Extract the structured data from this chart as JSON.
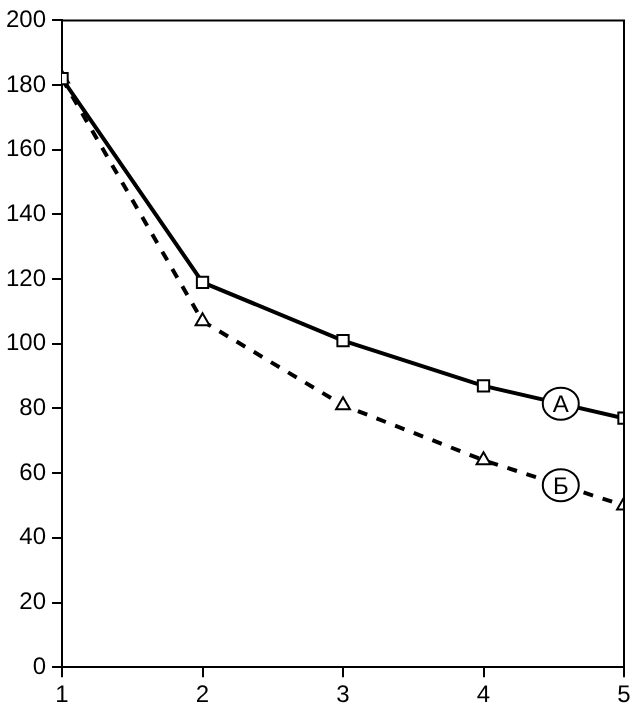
{
  "chart_data": {
    "type": "line",
    "x": [
      1,
      2,
      3,
      4,
      5
    ],
    "xlim": [
      1,
      5
    ],
    "xticks": [
      1,
      2,
      3,
      4,
      5
    ],
    "ylim": [
      0,
      200
    ],
    "yticks": [
      0,
      20,
      40,
      60,
      80,
      100,
      120,
      140,
      160,
      180,
      200
    ],
    "grid": false,
    "legend": false,
    "series": [
      {
        "name": "A",
        "color": "#000000",
        "values": [
          182,
          119,
          101,
          87,
          77
        ],
        "marker": "square",
        "line_style": "solid"
      },
      {
        "name": "Б",
        "color": "#000000",
        "values": [
          182,
          107,
          81,
          64,
          50
        ],
        "marker": "triangle",
        "line_style": "dashed"
      }
    ]
  }
}
